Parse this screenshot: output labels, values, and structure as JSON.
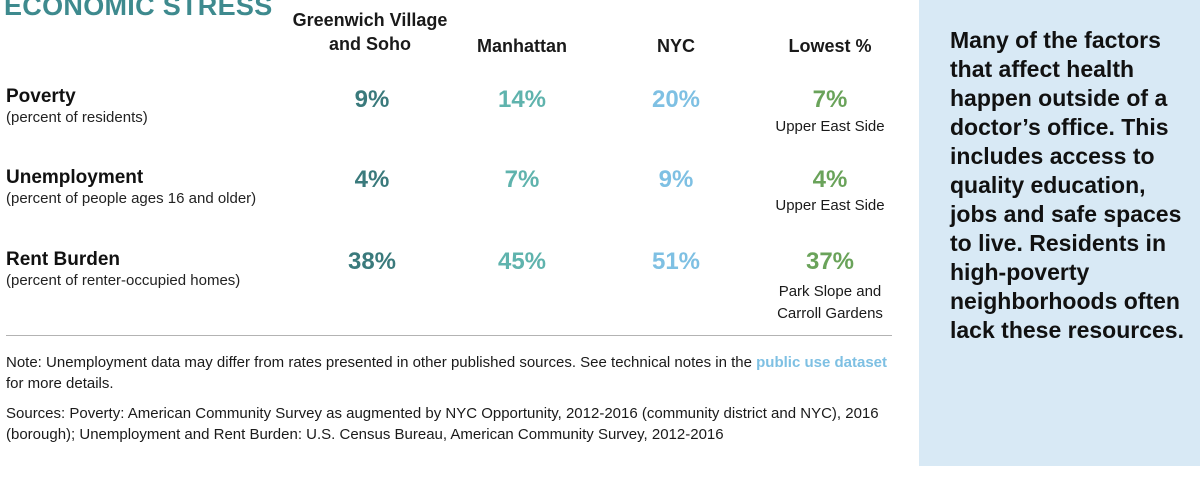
{
  "title": "ECONOMIC STRESS",
  "columns": {
    "gv": "Greenwich Village and Soho",
    "manhattan": "Manhattan",
    "nyc": "NYC",
    "lowest": "Lowest %"
  },
  "rows": [
    {
      "title": "Poverty",
      "subtitle": "(percent of residents)",
      "gv": "9%",
      "manhattan": "14%",
      "nyc": "20%",
      "lowest": "7%",
      "lowest_area": "Upper East Side"
    },
    {
      "title": "Unemployment",
      "subtitle": "(percent of people ages 16 and older)",
      "gv": "4%",
      "manhattan": "7%",
      "nyc": "9%",
      "lowest": "4%",
      "lowest_area": "Upper East Side"
    },
    {
      "title": "Rent Burden",
      "subtitle": "(percent of renter-occupied homes)",
      "gv": "38%",
      "manhattan": "45%",
      "nyc": "51%",
      "lowest": "37%",
      "lowest_area": "Park Slope and Carroll Gardens"
    }
  ],
  "note": {
    "prefix": "Note: Unemployment data may differ from rates presented in other published sources. See technical notes in the ",
    "link": "public use dataset",
    "suffix": " for more details."
  },
  "sources": "Sources: Poverty: American Community Survey as augmented by NYC Opportunity, 2012-2016 (community district and NYC), 2016 (borough); Unemployment and Rent Burden: U.S. Census Bureau, American Community Survey, 2012-2016",
  "sidebar": {
    "text": "Many of the factors that affect health happen outside of a doctor’s office. This includes access to quality education, jobs and safe spaces to live. Residents in high-poverty neighborhoods often lack these resources."
  },
  "colors": {
    "title": "#3e8a8e",
    "gv": "#3a7a7c",
    "manhattan": "#5fb3ad",
    "nyc": "#7ec0e3",
    "lowest": "#6aa35a",
    "sidebar_bg": "#d8e9f5"
  }
}
